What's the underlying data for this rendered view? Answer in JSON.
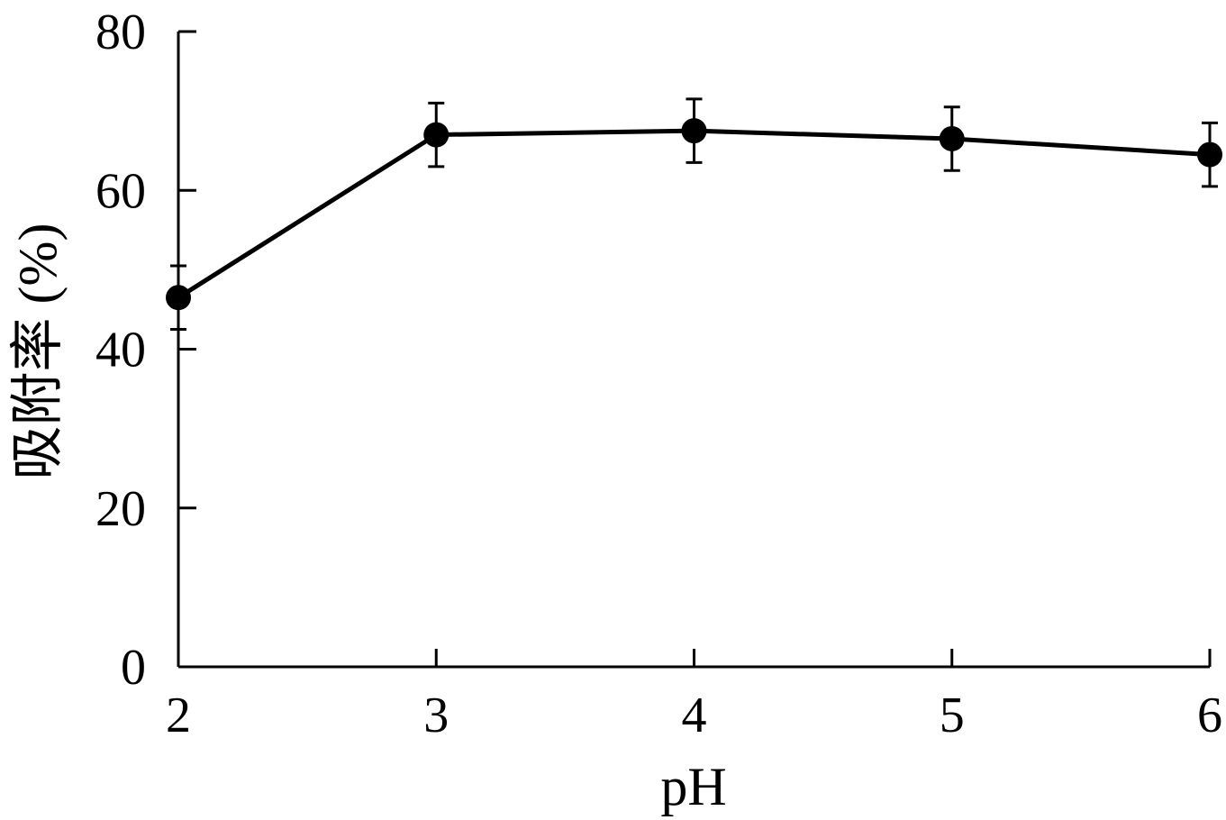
{
  "chart_data": {
    "type": "line",
    "title": "",
    "xlabel": "pH",
    "ylabel": "吸附率 (%)",
    "x": [
      2,
      3,
      4,
      5,
      6
    ],
    "xlim": [
      2,
      6
    ],
    "ylim": [
      0,
      80
    ],
    "xticks": [
      2,
      3,
      4,
      5,
      6
    ],
    "yticks": [
      0,
      20,
      40,
      60,
      80
    ],
    "grid": false,
    "series": [
      {
        "values": [
          46.5,
          67.0,
          67.5,
          66.5,
          64.5
        ],
        "errors": [
          4.0,
          4.0,
          4.0,
          4.0,
          4.0
        ],
        "color": "#000000",
        "marker": "filled-circle"
      }
    ]
  }
}
